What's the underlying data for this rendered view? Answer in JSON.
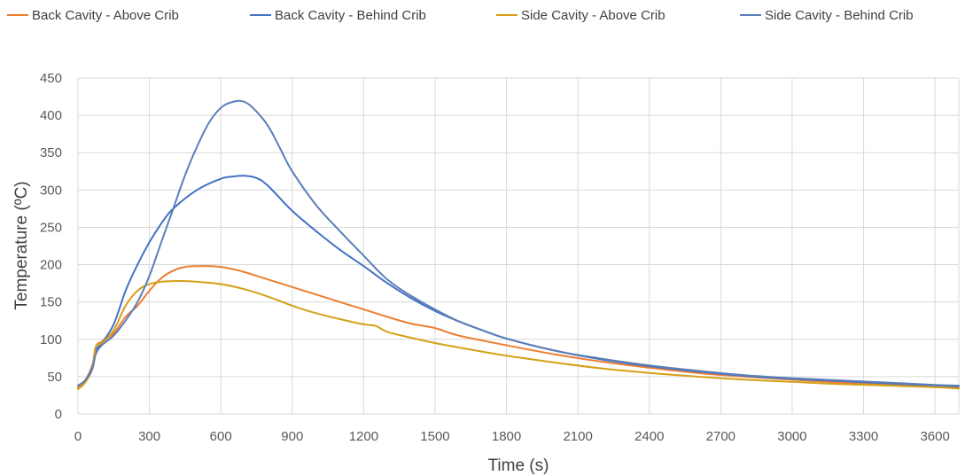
{
  "chart_data": {
    "type": "line",
    "title": "",
    "xlabel": "Time (s)",
    "ylabel": "Temperature (ºC)",
    "xlim": [
      0,
      3700
    ],
    "ylim": [
      0,
      450
    ],
    "x_ticks": [
      0,
      300,
      600,
      900,
      1200,
      1500,
      1800,
      2100,
      2400,
      2700,
      3000,
      3300,
      3600
    ],
    "y_ticks": [
      0,
      50,
      100,
      150,
      200,
      250,
      300,
      350,
      400,
      450
    ],
    "grid": true,
    "legend_position": "top",
    "series": [
      {
        "name": "Back Cavity - Above Crib",
        "color": "#ED7D31",
        "x": [
          0,
          30,
          60,
          75,
          100,
          150,
          200,
          250,
          300,
          350,
          400,
          450,
          500,
          550,
          600,
          650,
          700,
          800,
          900,
          1000,
          1100,
          1200,
          1300,
          1400,
          1500,
          1600,
          1800,
          2000,
          2200,
          2400,
          2600,
          2800,
          3000,
          3200,
          3400,
          3600,
          3700
        ],
        "y": [
          35,
          45,
          65,
          90,
          97,
          108,
          130,
          145,
          165,
          182,
          192,
          197,
          198,
          198,
          197,
          194,
          190,
          180,
          170,
          160,
          150,
          140,
          130,
          121,
          115,
          105,
          92,
          80,
          70,
          62,
          55,
          50,
          46,
          42,
          39,
          36,
          35
        ]
      },
      {
        "name": "Back Cavity - Behind Crib",
        "color": "#4472C4",
        "x": [
          0,
          30,
          60,
          75,
          100,
          150,
          200,
          250,
          300,
          350,
          400,
          500,
          600,
          650,
          700,
          750,
          800,
          900,
          1000,
          1100,
          1200,
          1300,
          1400,
          1500,
          1600,
          1700,
          1800,
          2000,
          2200,
          2400,
          2600,
          2800,
          3000,
          3200,
          3400,
          3600,
          3700
        ],
        "y": [
          38,
          45,
          62,
          85,
          95,
          120,
          165,
          200,
          230,
          255,
          275,
          300,
          315,
          318,
          319,
          316,
          305,
          272,
          245,
          220,
          198,
          175,
          155,
          138,
          124,
          112,
          101,
          85,
          73,
          64,
          57,
          51,
          47,
          44,
          41,
          38,
          37
        ]
      },
      {
        "name": "Side Cavity - Above Crib",
        "color": "#D4A017",
        "x": [
          0,
          30,
          60,
          75,
          100,
          150,
          200,
          250,
          300,
          350,
          400,
          450,
          500,
          600,
          700,
          800,
          900,
          1000,
          1100,
          1200,
          1250,
          1300,
          1400,
          1500,
          1600,
          1800,
          2000,
          2200,
          2400,
          2600,
          2800,
          3000,
          3200,
          3400,
          3600,
          3700
        ],
        "y": [
          33,
          42,
          60,
          90,
          95,
          112,
          145,
          165,
          174,
          177,
          178,
          178,
          177,
          174,
          167,
          157,
          145,
          135,
          127,
          120,
          118,
          110,
          102,
          95,
          89,
          78,
          69,
          61,
          55,
          50,
          46,
          43,
          40,
          38,
          36,
          34
        ]
      },
      {
        "name": "Side Cavity - Behind Crib",
        "color": "#5B7FB8",
        "x": [
          0,
          30,
          60,
          75,
          100,
          150,
          200,
          250,
          300,
          350,
          400,
          450,
          500,
          550,
          600,
          650,
          700,
          750,
          800,
          850,
          900,
          1000,
          1100,
          1200,
          1300,
          1400,
          1500,
          1600,
          1700,
          1800,
          2000,
          2200,
          2400,
          2600,
          2800,
          3000,
          3200,
          3400,
          3600,
          3700
        ],
        "y": [
          38,
          45,
          60,
          80,
          92,
          105,
          125,
          150,
          185,
          230,
          275,
          320,
          358,
          390,
          410,
          418,
          418,
          405,
          385,
          355,
          325,
          280,
          245,
          212,
          180,
          158,
          140,
          124,
          112,
          101,
          85,
          74,
          65,
          58,
          52,
          48,
          45,
          42,
          39,
          38
        ]
      }
    ]
  }
}
